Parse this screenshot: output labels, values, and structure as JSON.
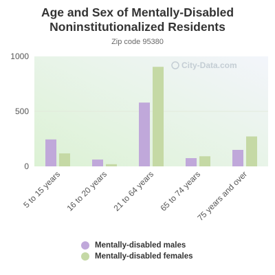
{
  "title_line1": "Age and Sex of Mentally-Disabled",
  "title_line2": "Noninstitutionalized Residents",
  "subtitle": "Zip code 95380",
  "watermark": "City-Data.com",
  "colors": {
    "males": "#c0a8da",
    "females": "#c5d9a5"
  },
  "chart_data": {
    "type": "bar",
    "title": "Age and Sex of Mentally-Disabled Noninstitutionalized Residents",
    "subtitle": "Zip code 95380",
    "categories": [
      "5 to 15 years",
      "16 to 20 years",
      "21 to 64 years",
      "65 to 74 years",
      "75 years and over"
    ],
    "series": [
      {
        "name": "Mentally-disabled males",
        "values": [
          245,
          62,
          580,
          75,
          150
        ]
      },
      {
        "name": "Mentally-disabled females",
        "values": [
          118,
          20,
          905,
          92,
          272
        ]
      }
    ],
    "yticks": [
      0,
      500,
      1000
    ],
    "ylim": [
      0,
      1000
    ],
    "legend_position": "bottom"
  }
}
